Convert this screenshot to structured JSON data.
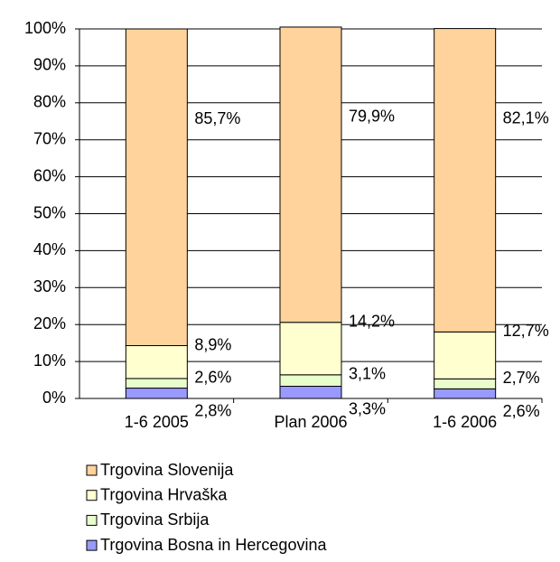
{
  "chart_data": {
    "type": "stacked_bar",
    "categories": [
      "1-6 2005",
      "Plan 2006",
      "1-6 2006"
    ],
    "series": [
      {
        "name": "Trgovina Slovenija",
        "color": "#ffd39b",
        "values": [
          85.7,
          79.9,
          82.1
        ],
        "value_labels": [
          "85,7%",
          "79,9%",
          "82,1%"
        ]
      },
      {
        "name": "Trgovina Hrvaška",
        "color": "#ffffd0",
        "values": [
          8.9,
          14.2,
          12.7
        ],
        "value_labels": [
          "8,9%",
          "14,2%",
          "12,7%"
        ]
      },
      {
        "name": "Trgovina Srbija",
        "color": "#e8ffcc",
        "values": [
          2.6,
          3.1,
          2.7
        ],
        "value_labels": [
          "2,6%",
          "3,1%",
          "2,7%"
        ]
      },
      {
        "name": "Trgovina Bosna in Hercegovina",
        "color": "#9999ff",
        "values": [
          2.8,
          3.3,
          2.6
        ],
        "value_labels": [
          "2,8%",
          "3,3%",
          "2,6%"
        ]
      }
    ],
    "ylim": [
      0,
      100
    ],
    "yticks": [
      {
        "value": 0,
        "label": "0%"
      },
      {
        "value": 10,
        "label": "10%"
      },
      {
        "value": 20,
        "label": "20%"
      },
      {
        "value": 30,
        "label": "30%"
      },
      {
        "value": 40,
        "label": "40%"
      },
      {
        "value": 50,
        "label": "50%"
      },
      {
        "value": 60,
        "label": "60%"
      },
      {
        "value": 70,
        "label": "70%"
      },
      {
        "value": 80,
        "label": "80%"
      },
      {
        "value": 90,
        "label": "90%"
      },
      {
        "value": 100,
        "label": "100%"
      }
    ],
    "grid": true
  }
}
